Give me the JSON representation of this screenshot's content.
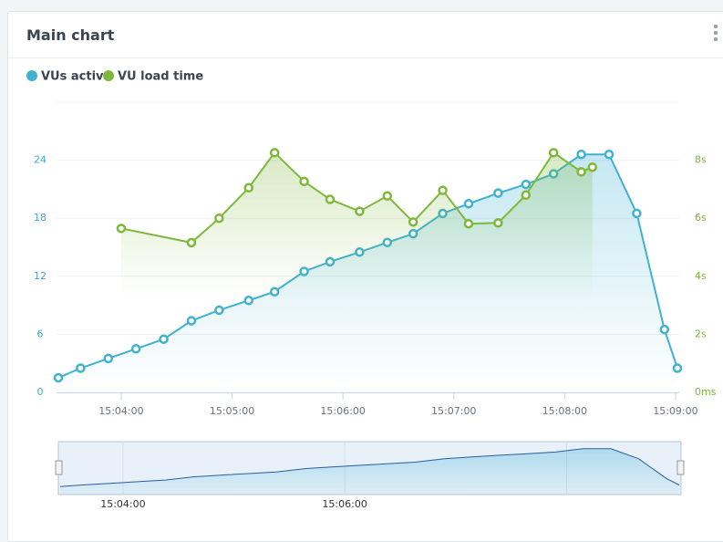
{
  "header": {
    "title": "Main chart"
  },
  "chart_data": {
    "type": "line",
    "xlim": [
      "15:03:25",
      "15:09:02"
    ],
    "xticks": [
      "15:04:00",
      "15:05:00",
      "15:06:00",
      "15:07:00",
      "15:08:00",
      "15:09:00"
    ],
    "ylim": [
      0,
      30
    ],
    "yticks": [
      0,
      6,
      12,
      18,
      24
    ],
    "y2lim": [
      0,
      10
    ],
    "y2ticks": [
      {
        "value": 0,
        "label": "0ms"
      },
      {
        "value": 2,
        "label": "2s"
      },
      {
        "value": 4,
        "label": "4s"
      },
      {
        "value": 6,
        "label": "6s"
      },
      {
        "value": 8,
        "label": "8s"
      }
    ],
    "grid": true,
    "legend": "top-left",
    "series": [
      {
        "name": "VUs active",
        "color": "#3fb1d1",
        "x": [
          "15:03:26",
          "15:03:38",
          "15:03:53",
          "15:04:08",
          "15:04:23",
          "15:04:38",
          "15:04:53",
          "15:05:09",
          "15:05:23",
          "15:05:39",
          "15:05:53",
          "15:06:09",
          "15:06:24",
          "15:06:38",
          "15:06:54",
          "15:07:08",
          "15:07:24",
          "15:07:39",
          "15:07:54",
          "15:08:09",
          "15:08:24",
          "15:08:39",
          "15:08:54",
          "15:09:01"
        ],
        "values": [
          1.5,
          2.5,
          3.5,
          4.5,
          5.5,
          7.4,
          8.5,
          9.5,
          10.4,
          12.5,
          13.5,
          14.5,
          15.5,
          16.4,
          18.5,
          19.5,
          20.6,
          21.5,
          22.6,
          24.6,
          24.6,
          18.5,
          6.5,
          2.5
        ]
      },
      {
        "name": "VU load time",
        "color": "#7db83a",
        "axis": "y2",
        "x": [
          "15:04:00",
          "15:04:38",
          "15:04:53",
          "15:05:09",
          "15:05:23",
          "15:05:39",
          "15:05:53",
          "15:06:09",
          "15:06:24",
          "15:06:38",
          "15:06:54",
          "15:07:08",
          "15:07:24",
          "15:07:39",
          "15:07:54",
          "15:08:09",
          "15:08:15"
        ],
        "values": [
          5.65,
          5.16,
          6.0,
          7.05,
          8.26,
          7.27,
          6.65,
          6.24,
          6.77,
          5.87,
          6.96,
          5.81,
          5.84,
          6.8,
          8.26,
          7.6,
          7.76
        ]
      }
    ]
  }
}
